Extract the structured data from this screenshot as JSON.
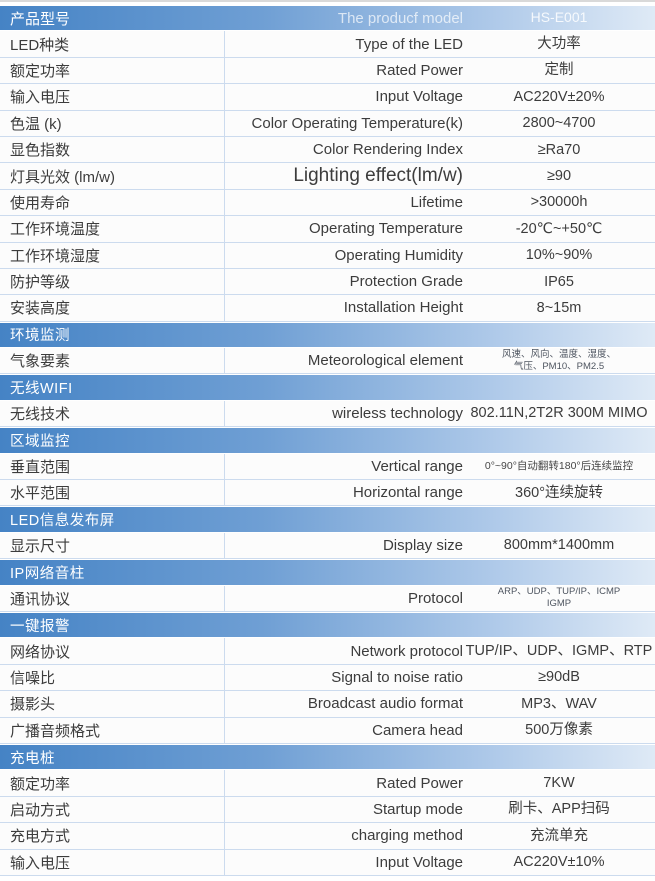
{
  "page": {
    "title_cn": "产品型号",
    "title_en": "The producf model",
    "model": "HS-E001"
  },
  "colors": {
    "header_gradient_left": "#4583c5",
    "header_gradient_right": "#dfeaf6",
    "row_divider": "#ccdbee",
    "text": "#3c3c3c",
    "header_text": "#ffffff"
  },
  "table": {
    "rows": [
      {
        "header": true,
        "cn": "产品型号",
        "en": "The producf model",
        "value": "HS-E001"
      },
      {
        "cn": "LED种类",
        "en": "Type of the LED",
        "value": "大功率"
      },
      {
        "cn": "额定功率",
        "en": "Rated Power",
        "value": "定制"
      },
      {
        "cn": "输入电压",
        "en": "Input Voltage",
        "value": "AC220V±20%"
      },
      {
        "cn": "色温 (k)",
        "en": "Color Operating Temperature(k)",
        "value": "2800~4700"
      },
      {
        "cn": "显色指数",
        "en": "Color Rendering Index",
        "value": "≥Ra70"
      },
      {
        "cn": "灯具光效 (lm/w)",
        "en": "Lighting effect(lm/w)",
        "value": "≥90",
        "en_large": true
      },
      {
        "cn": "使用寿命",
        "en": "Lifetime",
        "value": ">30000h"
      },
      {
        "cn": "工作环境温度",
        "en": "Operating Temperature",
        "value": "-20℃~+50℃"
      },
      {
        "cn": "工作环境湿度",
        "en": "Operating Humidity",
        "value": "10%~90%"
      },
      {
        "cn": "防护等级",
        "en": "Protection Grade",
        "value": "IP65"
      },
      {
        "cn": "安装高度",
        "en": "Installation Height",
        "value": "8~15m"
      },
      {
        "section": "环境监测"
      },
      {
        "cn": "气象要素",
        "en": "Meteorological element",
        "value": "风速、风向、温度、湿度、\n气压、PM10、PM2.5",
        "val_size": "sm"
      },
      {
        "section": "无线WIFI"
      },
      {
        "cn": "无线技术",
        "en": "wireless technology",
        "value": "802.11N,2T2R 300M MIMO"
      },
      {
        "section": "区域监控"
      },
      {
        "cn": "垂直范围",
        "en": "Vertical range",
        "value": "0°~90°自动翻转180°后连续监控",
        "val_size": "md"
      },
      {
        "cn": "水平范围",
        "en": "Horizontal range",
        "value": "360°连续旋转"
      },
      {
        "section": "LED信息发布屏"
      },
      {
        "cn": "显示尺寸",
        "en": "Display size",
        "value": "800mm*1400mm"
      },
      {
        "section": "IP网络音柱"
      },
      {
        "cn": "通讯协议",
        "en": "Protocol",
        "value": "ARP、UDP、TUP/IP、ICMP\nIGMP",
        "val_size": "sm"
      },
      {
        "section": "一键报警"
      },
      {
        "cn": "网络协议",
        "en": "Network protocol",
        "value": "TUP/IP、UDP、IGMP、RTP"
      },
      {
        "cn": "信噪比",
        "en": "Signal to noise ratio",
        "value": "≥90dB"
      },
      {
        "cn": "摄影头",
        "en": "Broadcast audio format",
        "value": "MP3、WAV"
      },
      {
        "cn": "广播音频格式",
        "en": "Camera head",
        "value": "500万像素"
      },
      {
        "section": "充电桩"
      },
      {
        "cn": "额定功率",
        "en": "Rated Power",
        "value": "7KW"
      },
      {
        "cn": "启动方式",
        "en": "Startup mode",
        "value": "刷卡、APP扫码"
      },
      {
        "cn": "充电方式",
        "en": "charging method",
        "value": "充流单充"
      },
      {
        "cn": "输入电压",
        "en": "Input Voltage",
        "value": "AC220V±10%"
      }
    ]
  }
}
